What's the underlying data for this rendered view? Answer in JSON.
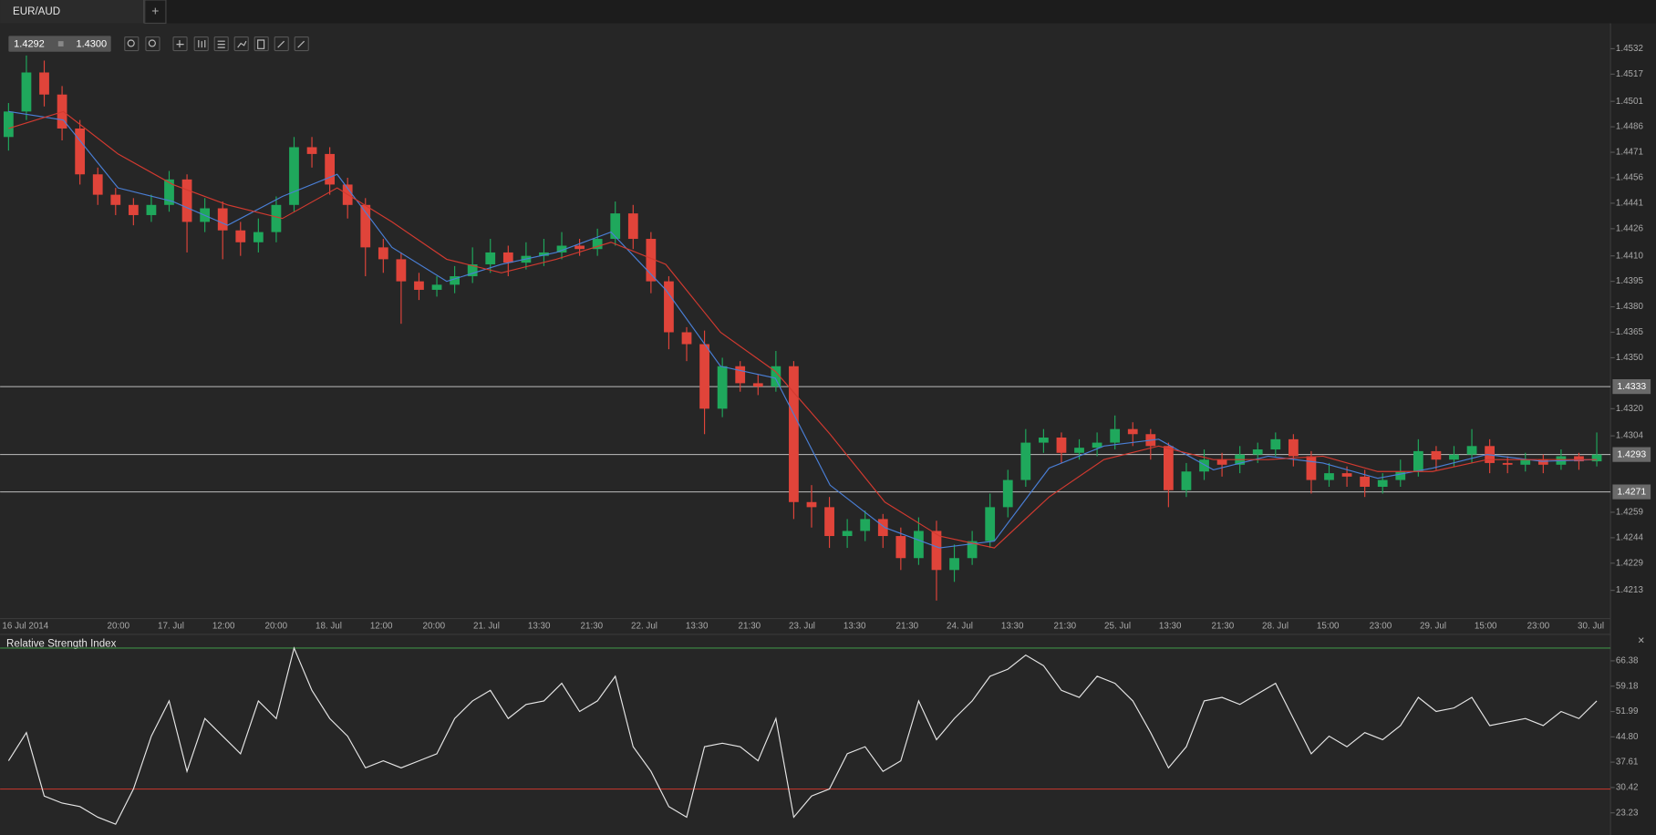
{
  "tab": {
    "label": "EUR/AUD",
    "add": "+"
  },
  "quote": {
    "bid": "1.4292",
    "ask": "1.4300"
  },
  "chart_data": [
    {
      "type": "candlestick",
      "categories": [
        "16 Jul 2014",
        "20:00",
        "17. Jul",
        "12:00",
        "20:00",
        "18. Jul",
        "12:00",
        "20:00",
        "21. Jul",
        "13:30",
        "21:30",
        "22. Jul",
        "13:30",
        "21:30",
        "23. Jul",
        "13:30",
        "21:30",
        "24. Jul",
        "13:30",
        "21:30",
        "25. Jul",
        "13:30",
        "21:30",
        "28. Jul",
        "15:00",
        "23:00",
        "29. Jul",
        "15:00",
        "23:00",
        "30. Jul"
      ],
      "ohlc": [
        [
          1.448,
          1.45,
          1.4472,
          1.4495
        ],
        [
          1.4495,
          1.4528,
          1.449,
          1.4518
        ],
        [
          1.4518,
          1.4525,
          1.4498,
          1.4505
        ],
        [
          1.4505,
          1.451,
          1.4478,
          1.4485
        ],
        [
          1.4485,
          1.449,
          1.4452,
          1.4458
        ],
        [
          1.4458,
          1.4462,
          1.444,
          1.4446
        ],
        [
          1.4446,
          1.445,
          1.4434,
          1.444
        ],
        [
          1.444,
          1.4444,
          1.4428,
          1.4434
        ],
        [
          1.4434,
          1.4446,
          1.443,
          1.444
        ],
        [
          1.444,
          1.446,
          1.4436,
          1.4455
        ],
        [
          1.4455,
          1.4458,
          1.4412,
          1.443
        ],
        [
          1.443,
          1.4444,
          1.4424,
          1.4438
        ],
        [
          1.4438,
          1.4442,
          1.4408,
          1.4425
        ],
        [
          1.4425,
          1.443,
          1.441,
          1.4418
        ],
        [
          1.4418,
          1.4432,
          1.4412,
          1.4424
        ],
        [
          1.4424,
          1.4445,
          1.4418,
          1.444
        ],
        [
          1.444,
          1.448,
          1.4436,
          1.4474
        ],
        [
          1.4474,
          1.448,
          1.4462,
          1.447
        ],
        [
          1.447,
          1.4474,
          1.4446,
          1.4452
        ],
        [
          1.4452,
          1.4456,
          1.4432,
          1.444
        ],
        [
          1.444,
          1.4444,
          1.4398,
          1.4415
        ],
        [
          1.4415,
          1.442,
          1.44,
          1.4408
        ],
        [
          1.4408,
          1.4412,
          1.437,
          1.4395
        ],
        [
          1.4395,
          1.44,
          1.4384,
          1.439
        ],
        [
          1.439,
          1.4398,
          1.4386,
          1.4393
        ],
        [
          1.4393,
          1.4404,
          1.4388,
          1.4398
        ],
        [
          1.4398,
          1.4415,
          1.4394,
          1.4405
        ],
        [
          1.4405,
          1.442,
          1.44,
          1.4412
        ],
        [
          1.4412,
          1.4416,
          1.4398,
          1.4406
        ],
        [
          1.4406,
          1.4418,
          1.4402,
          1.441
        ],
        [
          1.441,
          1.442,
          1.4404,
          1.4412
        ],
        [
          1.4412,
          1.4424,
          1.4408,
          1.4416
        ],
        [
          1.4416,
          1.442,
          1.441,
          1.4414
        ],
        [
          1.4414,
          1.4426,
          1.441,
          1.442
        ],
        [
          1.442,
          1.4442,
          1.4416,
          1.4435
        ],
        [
          1.4435,
          1.444,
          1.4414,
          1.442
        ],
        [
          1.442,
          1.4424,
          1.4388,
          1.4395
        ],
        [
          1.4395,
          1.4398,
          1.4355,
          1.4365
        ],
        [
          1.4365,
          1.4368,
          1.4348,
          1.4358
        ],
        [
          1.4358,
          1.4366,
          1.4305,
          1.432
        ],
        [
          1.432,
          1.435,
          1.4315,
          1.4345
        ],
        [
          1.4345,
          1.4348,
          1.433,
          1.4335
        ],
        [
          1.4335,
          1.434,
          1.4328,
          1.4333
        ],
        [
          1.4333,
          1.4354,
          1.433,
          1.4345
        ],
        [
          1.4345,
          1.4348,
          1.4255,
          1.4265
        ],
        [
          1.4265,
          1.4275,
          1.425,
          1.4262
        ],
        [
          1.4262,
          1.4268,
          1.4238,
          1.4245
        ],
        [
          1.4245,
          1.4255,
          1.4238,
          1.4248
        ],
        [
          1.4248,
          1.426,
          1.4242,
          1.4255
        ],
        [
          1.4255,
          1.4258,
          1.4238,
          1.4245
        ],
        [
          1.4245,
          1.425,
          1.4225,
          1.4232
        ],
        [
          1.4232,
          1.4256,
          1.4228,
          1.4248
        ],
        [
          1.4248,
          1.4254,
          1.4207,
          1.4225
        ],
        [
          1.4225,
          1.424,
          1.4218,
          1.4232
        ],
        [
          1.4232,
          1.4248,
          1.4228,
          1.4242
        ],
        [
          1.4242,
          1.427,
          1.4238,
          1.4262
        ],
        [
          1.4262,
          1.4284,
          1.4256,
          1.4278
        ],
        [
          1.4278,
          1.4308,
          1.4274,
          1.43
        ],
        [
          1.43,
          1.4308,
          1.4294,
          1.4303
        ],
        [
          1.4303,
          1.4306,
          1.4288,
          1.4294
        ],
        [
          1.4294,
          1.4302,
          1.429,
          1.4297
        ],
        [
          1.4297,
          1.4306,
          1.4292,
          1.43
        ],
        [
          1.43,
          1.4316,
          1.4296,
          1.4308
        ],
        [
          1.4308,
          1.4312,
          1.4298,
          1.4305
        ],
        [
          1.4305,
          1.4308,
          1.429,
          1.4298
        ],
        [
          1.4298,
          1.43,
          1.4262,
          1.4272
        ],
        [
          1.4272,
          1.4288,
          1.4268,
          1.4283
        ],
        [
          1.4283,
          1.4296,
          1.4278,
          1.429
        ],
        [
          1.429,
          1.4294,
          1.428,
          1.4287
        ],
        [
          1.4287,
          1.4298,
          1.4282,
          1.4293
        ],
        [
          1.4293,
          1.43,
          1.4288,
          1.4296
        ],
        [
          1.4296,
          1.4306,
          1.4292,
          1.4302
        ],
        [
          1.4302,
          1.4305,
          1.4286,
          1.4292
        ],
        [
          1.4292,
          1.4295,
          1.427,
          1.4278
        ],
        [
          1.4278,
          1.4288,
          1.4274,
          1.4282
        ],
        [
          1.4282,
          1.4286,
          1.4274,
          1.428
        ],
        [
          1.428,
          1.4284,
          1.4268,
          1.4274
        ],
        [
          1.4274,
          1.4282,
          1.427,
          1.4278
        ],
        [
          1.4278,
          1.429,
          1.4274,
          1.4283
        ],
        [
          1.4283,
          1.4302,
          1.428,
          1.4295
        ],
        [
          1.4295,
          1.4298,
          1.4284,
          1.429
        ],
        [
          1.429,
          1.4298,
          1.4286,
          1.4293
        ],
        [
          1.4293,
          1.4308,
          1.4288,
          1.4298
        ],
        [
          1.4298,
          1.4302,
          1.4282,
          1.4288
        ],
        [
          1.4288,
          1.4292,
          1.4282,
          1.4287
        ],
        [
          1.4287,
          1.4294,
          1.4283,
          1.429
        ],
        [
          1.429,
          1.4293,
          1.4282,
          1.4287
        ],
        [
          1.4287,
          1.4296,
          1.4284,
          1.4292
        ],
        [
          1.4292,
          1.4294,
          1.4284,
          1.4289
        ],
        [
          1.4289,
          1.4306,
          1.4286,
          1.4293
        ]
      ],
      "up_color": "#1fa85c",
      "down_color": "#e0443a",
      "series": [
        {
          "color": "#4a7fd6",
          "values": [
            1.4495,
            1.449,
            1.445,
            1.4442,
            1.4428,
            1.4445,
            1.4458,
            1.4415,
            1.4395,
            1.4405,
            1.4412,
            1.4424,
            1.439,
            1.4345,
            1.4338,
            1.4275,
            1.425,
            1.4238,
            1.4242,
            1.4285,
            1.4298,
            1.4302,
            1.4284,
            1.4292,
            1.4288,
            1.4279,
            1.4285,
            1.4293,
            1.4289,
            1.429
          ]
        },
        {
          "color": "#d23a30",
          "values": [
            1.4485,
            1.4495,
            1.447,
            1.4452,
            1.444,
            1.4432,
            1.445,
            1.443,
            1.4408,
            1.44,
            1.4408,
            1.4418,
            1.4405,
            1.4365,
            1.4342,
            1.4305,
            1.4265,
            1.4245,
            1.4238,
            1.4268,
            1.429,
            1.4298,
            1.429,
            1.429,
            1.4292,
            1.4283,
            1.4283,
            1.429,
            1.429,
            1.429
          ]
        }
      ],
      "ylim": [
        1.4197,
        1.4547
      ],
      "yticks": [
        1.4532,
        1.4517,
        1.4501,
        1.4486,
        1.4471,
        1.4456,
        1.4441,
        1.4426,
        {
          "value": 1.441,
          "label": "1.4410"
        },
        1.4395,
        {
          "value": 1.438,
          "label": "1.4380"
        },
        1.4365,
        {
          "value": 1.435,
          "label": "1.4350"
        },
        {
          "value": 1.432,
          "label": "1.4320"
        },
        1.4304,
        1.4259,
        1.4244,
        1.4229,
        1.4213
      ],
      "hlines": [
        1.4333,
        1.4293,
        1.4271
      ]
    },
    {
      "type": "line",
      "title": "Relative Strength Index",
      "color": "#e6e6e6",
      "values": [
        38,
        46,
        28,
        26,
        25,
        22,
        20,
        30,
        45,
        55,
        35,
        50,
        45,
        40,
        55,
        50,
        70,
        58,
        50,
        45,
        36,
        38,
        36,
        38,
        40,
        50,
        55,
        58,
        50,
        54,
        55,
        60,
        52,
        55,
        62,
        42,
        35,
        25,
        22,
        42,
        43,
        42,
        38,
        50,
        22,
        28,
        30,
        40,
        42,
        35,
        38,
        55,
        44,
        50,
        55,
        62,
        64,
        68,
        65,
        58,
        56,
        62,
        60,
        55,
        46,
        36,
        42,
        55,
        56,
        54,
        57,
        60,
        50,
        40,
        45,
        42,
        46,
        44,
        48,
        56,
        52,
        53,
        56,
        48,
        49,
        50,
        48,
        52,
        50,
        55
      ],
      "ylim": [
        16.94,
        73.57
      ],
      "yticks": [
        66.38,
        59.18,
        51.99,
        {
          "value": 44.8,
          "label": "44.80"
        },
        37.61,
        30.42,
        23.23
      ],
      "levels": [
        {
          "value": 70,
          "color": "#3f8f45"
        },
        {
          "value": 30,
          "color": "#b8342c"
        }
      ]
    }
  ]
}
